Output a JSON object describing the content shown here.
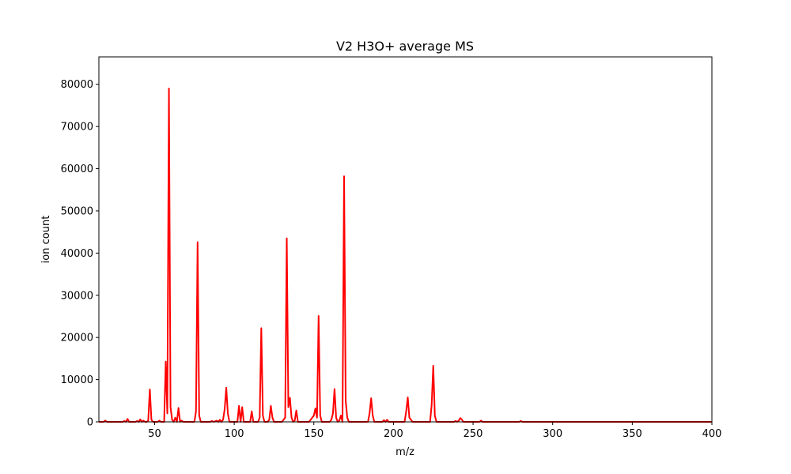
{
  "chart_data": {
    "type": "line",
    "title": "V2 H3O+ average MS",
    "xlabel": "m/z",
    "ylabel": "ion count",
    "xlim": [
      15,
      400
    ],
    "ylim": [
      0,
      86500
    ],
    "grid": false,
    "x_ticks": [
      50,
      100,
      150,
      200,
      250,
      300,
      350,
      400
    ],
    "y_ticks": [
      0,
      10000,
      20000,
      30000,
      40000,
      50000,
      60000,
      70000,
      80000
    ],
    "series": [
      {
        "color": "#ff0000",
        "points": [
          [
            15,
            0
          ],
          [
            18,
            0
          ],
          [
            19,
            300
          ],
          [
            20,
            0
          ],
          [
            25,
            0
          ],
          [
            30,
            0
          ],
          [
            31,
            200
          ],
          [
            32,
            0
          ],
          [
            33,
            700
          ],
          [
            34,
            0
          ],
          [
            38,
            0
          ],
          [
            39,
            200
          ],
          [
            40,
            0
          ],
          [
            41,
            600
          ],
          [
            42,
            0
          ],
          [
            43,
            300
          ],
          [
            44,
            0
          ],
          [
            45,
            0
          ],
          [
            46,
            300
          ],
          [
            47,
            7700
          ],
          [
            48,
            500
          ],
          [
            49,
            0
          ],
          [
            52,
            0
          ],
          [
            53,
            300
          ],
          [
            54,
            0
          ],
          [
            55,
            0
          ],
          [
            56,
            0
          ],
          [
            57,
            14300
          ],
          [
            58,
            2000
          ],
          [
            59,
            79000
          ],
          [
            60,
            3500
          ],
          [
            61,
            500
          ],
          [
            62,
            0
          ],
          [
            63,
            1000
          ],
          [
            64,
            0
          ],
          [
            65,
            3300
          ],
          [
            66,
            0
          ],
          [
            67,
            300
          ],
          [
            68,
            0
          ],
          [
            75,
            0
          ],
          [
            76,
            2500
          ],
          [
            77,
            42600
          ],
          [
            78,
            1500
          ],
          [
            79,
            0
          ],
          [
            85,
            0
          ],
          [
            86,
            200
          ],
          [
            87,
            0
          ],
          [
            89,
            300
          ],
          [
            90,
            0
          ],
          [
            91,
            500
          ],
          [
            92,
            0
          ],
          [
            93,
            500
          ],
          [
            94,
            3000
          ],
          [
            95,
            8100
          ],
          [
            96,
            2000
          ],
          [
            97,
            0
          ],
          [
            102,
            0
          ],
          [
            103,
            3800
          ],
          [
            104,
            0
          ],
          [
            105,
            3500
          ],
          [
            106,
            0
          ],
          [
            110,
            0
          ],
          [
            111,
            2500
          ],
          [
            112,
            0
          ],
          [
            115,
            0
          ],
          [
            116,
            1000
          ],
          [
            117,
            22200
          ],
          [
            118,
            1500
          ],
          [
            119,
            0
          ],
          [
            121,
            0
          ],
          [
            122,
            500
          ],
          [
            123,
            3800
          ],
          [
            124,
            1000
          ],
          [
            125,
            0
          ],
          [
            130,
            0
          ],
          [
            132,
            1000
          ],
          [
            133,
            43500
          ],
          [
            134,
            3500
          ],
          [
            135,
            5700
          ],
          [
            136,
            1000
          ],
          [
            137,
            0
          ],
          [
            138,
            300
          ],
          [
            139,
            2700
          ],
          [
            140,
            0
          ],
          [
            147,
            0
          ],
          [
            148,
            500
          ],
          [
            150,
            1500
          ],
          [
            151,
            3200
          ],
          [
            152,
            1000
          ],
          [
            153,
            25100
          ],
          [
            154,
            1500
          ],
          [
            155,
            0
          ],
          [
            160,
            0
          ],
          [
            161,
            500
          ],
          [
            162,
            2000
          ],
          [
            163,
            7800
          ],
          [
            164,
            1000
          ],
          [
            165,
            0
          ],
          [
            166,
            300
          ],
          [
            167,
            1500
          ],
          [
            168,
            0
          ],
          [
            169,
            58200
          ],
          [
            170,
            5000
          ],
          [
            171,
            1000
          ],
          [
            172,
            0
          ],
          [
            180,
            0
          ],
          [
            184,
            0
          ],
          [
            185,
            2000
          ],
          [
            186,
            5600
          ],
          [
            187,
            1500
          ],
          [
            188,
            0
          ],
          [
            193,
            0
          ],
          [
            194,
            400
          ],
          [
            195,
            0
          ],
          [
            196,
            500
          ],
          [
            197,
            0
          ],
          [
            205,
            0
          ],
          [
            207,
            0
          ],
          [
            208,
            2500
          ],
          [
            209,
            5800
          ],
          [
            210,
            1000
          ],
          [
            211,
            500
          ],
          [
            212,
            0
          ],
          [
            220,
            0
          ],
          [
            223,
            0
          ],
          [
            224,
            4000
          ],
          [
            225,
            13300
          ],
          [
            226,
            1500
          ],
          [
            227,
            0
          ],
          [
            238,
            0
          ],
          [
            239,
            200
          ],
          [
            240,
            0
          ],
          [
            241,
            300
          ],
          [
            242,
            900
          ],
          [
            243,
            500
          ],
          [
            244,
            0
          ],
          [
            254,
            0
          ],
          [
            255,
            300
          ],
          [
            256,
            0
          ],
          [
            260,
            0
          ],
          [
            279,
            0
          ],
          [
            280,
            200
          ],
          [
            281,
            0
          ],
          [
            300,
            0
          ],
          [
            350,
            0
          ],
          [
            400,
            0
          ]
        ]
      }
    ]
  }
}
